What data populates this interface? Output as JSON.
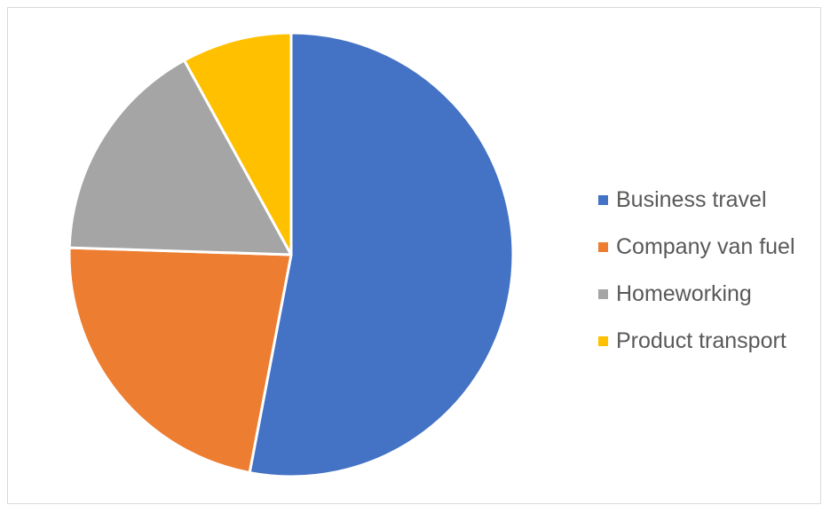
{
  "chart_data": {
    "type": "pie",
    "title": "",
    "categories": [
      "Business travel",
      "Company van fuel",
      "Homeworking",
      "Product transport"
    ],
    "values": [
      53,
      22.5,
      16.5,
      8
    ],
    "colors": [
      "#4472C4",
      "#ED7D31",
      "#A5A5A5",
      "#FFC000"
    ],
    "legend_position": "right",
    "start_angle_deg": 0,
    "direction": "clockwise"
  }
}
